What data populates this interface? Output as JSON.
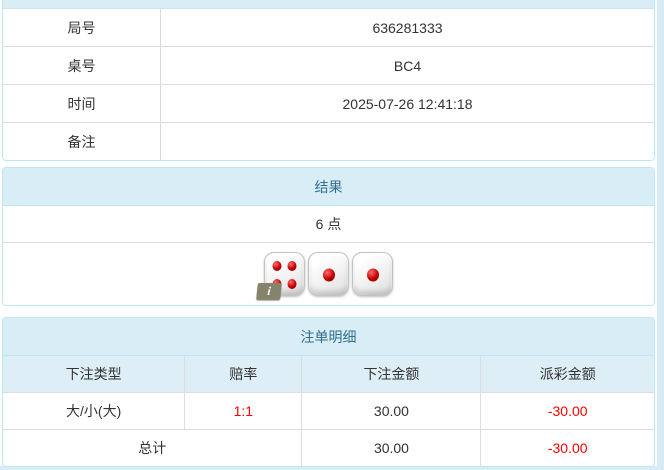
{
  "colors": {
    "page_background": "#d8ecf6",
    "panel_border": "#bce8f1",
    "heading_background": "#d9edf7",
    "heading_text": "#31708f",
    "table_header_background": "#ddeef6",
    "negative_text": "#ff0000"
  },
  "info": {
    "rows": [
      {
        "label": "局号",
        "value": "636281333"
      },
      {
        "label": "桌号",
        "value": "BC4"
      },
      {
        "label": "时间",
        "value": "2025-07-26 12:41:18"
      },
      {
        "label": "备注",
        "value": ""
      }
    ]
  },
  "result": {
    "title": "结果",
    "points": "6 点",
    "dice": [
      4,
      1,
      1
    ],
    "info_badge": "i"
  },
  "bets": {
    "title": "注单明细",
    "columns": [
      "下注类型",
      "赔率",
      "下注金额",
      "派彩金额"
    ],
    "rows": [
      {
        "type": "大/小(大)",
        "odds": "1:1",
        "amount": "30.00",
        "payout": "-30.00"
      }
    ],
    "total": {
      "label": "总计",
      "amount": "30.00",
      "payout": "-30.00"
    }
  }
}
